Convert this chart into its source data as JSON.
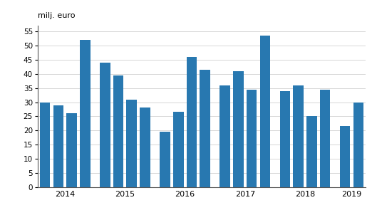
{
  "values": [
    30,
    29,
    26,
    52,
    44,
    39.5,
    31,
    28,
    19.5,
    26.5,
    46,
    41.5,
    36,
    41,
    34.5,
    53.5,
    34,
    36,
    25,
    34.5,
    21.5,
    30
  ],
  "bar_color": "#2878b0",
  "ylabel": "milj. euro",
  "ylim": [
    0,
    57
  ],
  "yticks": [
    0,
    5,
    10,
    15,
    20,
    25,
    30,
    35,
    40,
    45,
    50,
    55
  ],
  "year_labels": [
    "2014",
    "2015",
    "2016",
    "2017",
    "2018",
    "2019"
  ],
  "group_sizes": [
    4,
    4,
    4,
    4,
    4,
    2
  ],
  "background_color": "#ffffff",
  "grid_color": "#d0d0d0",
  "bar_gap": 0.5
}
